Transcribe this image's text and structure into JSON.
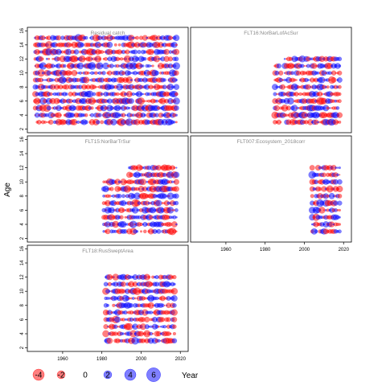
{
  "chart_data": {
    "type": "scatter",
    "subtype": "bubble-residuals",
    "ylabel": "Age",
    "xlabel": "Year",
    "xlim": [
      1942,
      2024
    ],
    "ylim": [
      1.5,
      16.5
    ],
    "x_ticks": [
      1960,
      1980,
      2000,
      2020
    ],
    "y_ticks": [
      2,
      4,
      6,
      8,
      10,
      12,
      14,
      16
    ],
    "colors": {
      "positive": "#0000ff",
      "negative": "#ff0000"
    },
    "bubble_opacity": 0.5,
    "legend": {
      "placement": "bottom-left",
      "items": [
        {
          "label": "-4",
          "value": -4
        },
        {
          "label": "-2",
          "value": -2
        },
        {
          "label": "0",
          "value": 0
        },
        {
          "label": "2",
          "value": 2
        },
        {
          "label": "4",
          "value": 4
        },
        {
          "label": "6",
          "value": 6
        }
      ]
    },
    "panels": [
      {
        "title": "Residual catch",
        "year_start": 1946,
        "year_end": 2018,
        "age_min": 3,
        "age_max": 15,
        "grid": "top-left"
      },
      {
        "title": "FLT16:NorBarLofAcSur",
        "year_start": 1985,
        "year_end": 2018,
        "age_min": 3,
        "age_max": 12,
        "grid": "top-right",
        "late_start": 1990,
        "late_start_age": 12
      },
      {
        "title": "FLT15:NorBarTrSur",
        "year_start": 1981,
        "year_end": 2018,
        "age_min": 3,
        "age_max": 12,
        "grid": "mid-left",
        "late_start": 1994,
        "late_start_age": 11
      },
      {
        "title": "FLT007:Ecosystem_2018corr",
        "year_start": 2004,
        "year_end": 2018,
        "age_min": 3,
        "age_max": 12,
        "grid": "mid-right"
      },
      {
        "title": "FLT18:RusSweptArea",
        "year_start": 1982,
        "year_end": 2017,
        "age_min": 3,
        "age_max": 12,
        "grid": "bottom-left"
      }
    ]
  }
}
